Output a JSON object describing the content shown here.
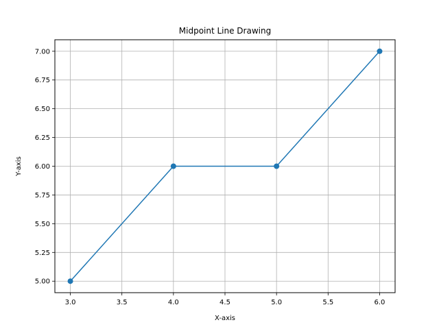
{
  "chart_data": {
    "type": "line",
    "title": "Midpoint Line Drawing",
    "xlabel": "X-axis",
    "ylabel": "Y-axis",
    "xlim": [
      2.85,
      6.15
    ],
    "ylim": [
      4.9,
      7.1
    ],
    "xticks": [
      3.0,
      3.5,
      4.0,
      4.5,
      5.0,
      5.5,
      6.0
    ],
    "xtick_labels": [
      "3.0",
      "3.5",
      "4.0",
      "4.5",
      "5.0",
      "5.5",
      "6.0"
    ],
    "yticks": [
      5.0,
      5.25,
      5.5,
      5.75,
      6.0,
      6.25,
      6.5,
      6.75,
      7.0
    ],
    "ytick_labels": [
      "5.00",
      "5.25",
      "5.50",
      "5.75",
      "6.00",
      "6.25",
      "6.50",
      "6.75",
      "7.00"
    ],
    "grid": true,
    "series": [
      {
        "x": [
          3,
          4,
          5,
          6
        ],
        "y": [
          5,
          6,
          6,
          7
        ],
        "color": "#1f77b4",
        "marker": "circle"
      }
    ]
  }
}
